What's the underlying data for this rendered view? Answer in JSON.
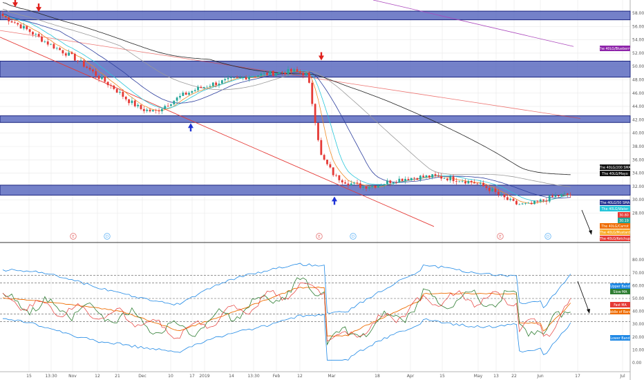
{
  "chart_data": [
    {
      "type": "candlestick",
      "ylim": [
        26,
        59
      ],
      "ytick_labels": [
        "58.00",
        "56.00",
        "54.00",
        "52.00",
        "50.00",
        "48.00",
        "46.00",
        "44.00",
        "42.00",
        "40.00",
        "38.00",
        "36.00",
        "34.00",
        "32.00",
        "30.00",
        "28.00"
      ],
      "xtick_labels": [
        "15",
        "13:30",
        "Nov",
        "12",
        "21",
        "Dec",
        "10",
        "17",
        "2019",
        "14",
        "13:30",
        "Feb",
        "12",
        "Mar",
        "18",
        "Apr",
        "15",
        "May",
        "13",
        "22",
        "Jun",
        "17",
        "Jul"
      ],
      "last_price": 30.8,
      "ohlc_sampled": [
        [
          58.5,
          57.6
        ],
        [
          57.5,
          56.4
        ],
        [
          56.8,
          55.2
        ],
        [
          55.1,
          53.8
        ],
        [
          54.0,
          52.6
        ],
        [
          52.8,
          51.5
        ],
        [
          51.5,
          50.0
        ],
        [
          50.0,
          48.3
        ],
        [
          48.5,
          46.8
        ],
        [
          46.5,
          45.0
        ],
        [
          45.0,
          43.6
        ],
        [
          43.6,
          43.2
        ],
        [
          43.4,
          44.5
        ],
        [
          44.6,
          45.7
        ],
        [
          45.8,
          46.6
        ],
        [
          46.7,
          47.3
        ],
        [
          47.4,
          47.8
        ],
        [
          47.9,
          48.2
        ],
        [
          48.2,
          48.6
        ],
        [
          48.6,
          48.9
        ],
        [
          48.9,
          49.1
        ],
        [
          49.2,
          49.3
        ],
        [
          49.3,
          48.8
        ],
        [
          48.5,
          36.5
        ],
        [
          37.0,
          33.5
        ],
        [
          33.6,
          32.5
        ],
        [
          32.5,
          32.0
        ],
        [
          32.0,
          32.2
        ],
        [
          32.3,
          32.8
        ],
        [
          32.9,
          33.2
        ],
        [
          33.2,
          33.4
        ],
        [
          33.4,
          33.5
        ],
        [
          33.5,
          33.3
        ],
        [
          33.3,
          33.0
        ],
        [
          33.0,
          32.6
        ],
        [
          32.5,
          31.8
        ],
        [
          31.8,
          30.5
        ],
        [
          30.4,
          29.4
        ],
        [
          29.4,
          29.2
        ],
        [
          29.3,
          29.9
        ],
        [
          30.0,
          30.6
        ],
        [
          30.6,
          30.8
        ]
      ],
      "resistance_zones": [
        [
          57.0,
          58.3
        ],
        [
          48.4,
          50.8
        ],
        [
          41.6,
          42.6
        ],
        [
          30.7,
          32.2
        ]
      ],
      "signals": [
        {
          "type": "sell",
          "price": 58.9
        },
        {
          "type": "sell",
          "price": 58.2
        },
        {
          "type": "sell",
          "price": 50.9
        },
        {
          "type": "buy",
          "price": 41.5
        },
        {
          "type": "buy",
          "price": 30.5
        }
      ],
      "events": [
        {
          "label": "E",
          "kind": "earnings"
        },
        {
          "label": "D",
          "kind": "dividend"
        },
        {
          "label": "E",
          "kind": "earnings"
        },
        {
          "label": "D",
          "kind": "dividend"
        },
        {
          "label": "E",
          "kind": "earnings"
        },
        {
          "label": "D",
          "kind": "dividend"
        }
      ],
      "series": [
        {
          "name": "The 40LG/200 SMA",
          "color": "#222222"
        },
        {
          "name": "The 40LG/Mayo",
          "color": "#999999"
        },
        {
          "name": "The 40LG/50 SMA",
          "color": "#2c3e9e"
        },
        {
          "name": "The 40LG/Water",
          "color": "#26c6da"
        },
        {
          "name": "The 40LG/Carrot",
          "color": "#f08a24"
        },
        {
          "name": "The 40LG/Mustard",
          "color": "#f0a030"
        },
        {
          "name": "The 40LG/Ketchup",
          "color": "#e53935"
        },
        {
          "name": "The 40LG/Blueberry",
          "color": "#7b1fa2"
        }
      ],
      "price_tags": [
        {
          "label": "30.80",
          "color": "#e53935"
        },
        {
          "label": "30.19",
          "color": "#26a69a"
        }
      ]
    },
    {
      "type": "line",
      "ylim": [
        0,
        82
      ],
      "ytick_labels": [
        "80.00",
        "70.00",
        "60.00",
        "50.00",
        "40.00",
        "30.00",
        "20.00",
        "10.00",
        "0.00"
      ],
      "reference_lines": [
        68,
        62,
        50,
        38,
        32
      ],
      "series": [
        {
          "name": "Upper Band",
          "color": "#1e88e5",
          "tag_color": "#1e88e5"
        },
        {
          "name": "Slow MA",
          "color": "#2e7d32",
          "tag_color": "#2e7d32"
        },
        {
          "name": "Fast MA",
          "color": "#e53935",
          "tag_color": "#e53935"
        },
        {
          "name": "Middle of Bands",
          "color": "#ef6c00",
          "tag_color": "#ef6c00"
        },
        {
          "name": "Lower Band",
          "color": "#1e88e5",
          "tag_color": "#1e88e5"
        }
      ]
    }
  ],
  "colors": {
    "zone_fill": "#5c6bc0",
    "zone_stroke": "#1a237e",
    "bull": "#26a69a",
    "bear": "#e53935",
    "buy_arrow": "#1f33d6",
    "sell_arrow": "#e0201c",
    "trend_red": "#e53935",
    "trend_purple": "#ab47bc",
    "grid": "#e8e8e8"
  }
}
